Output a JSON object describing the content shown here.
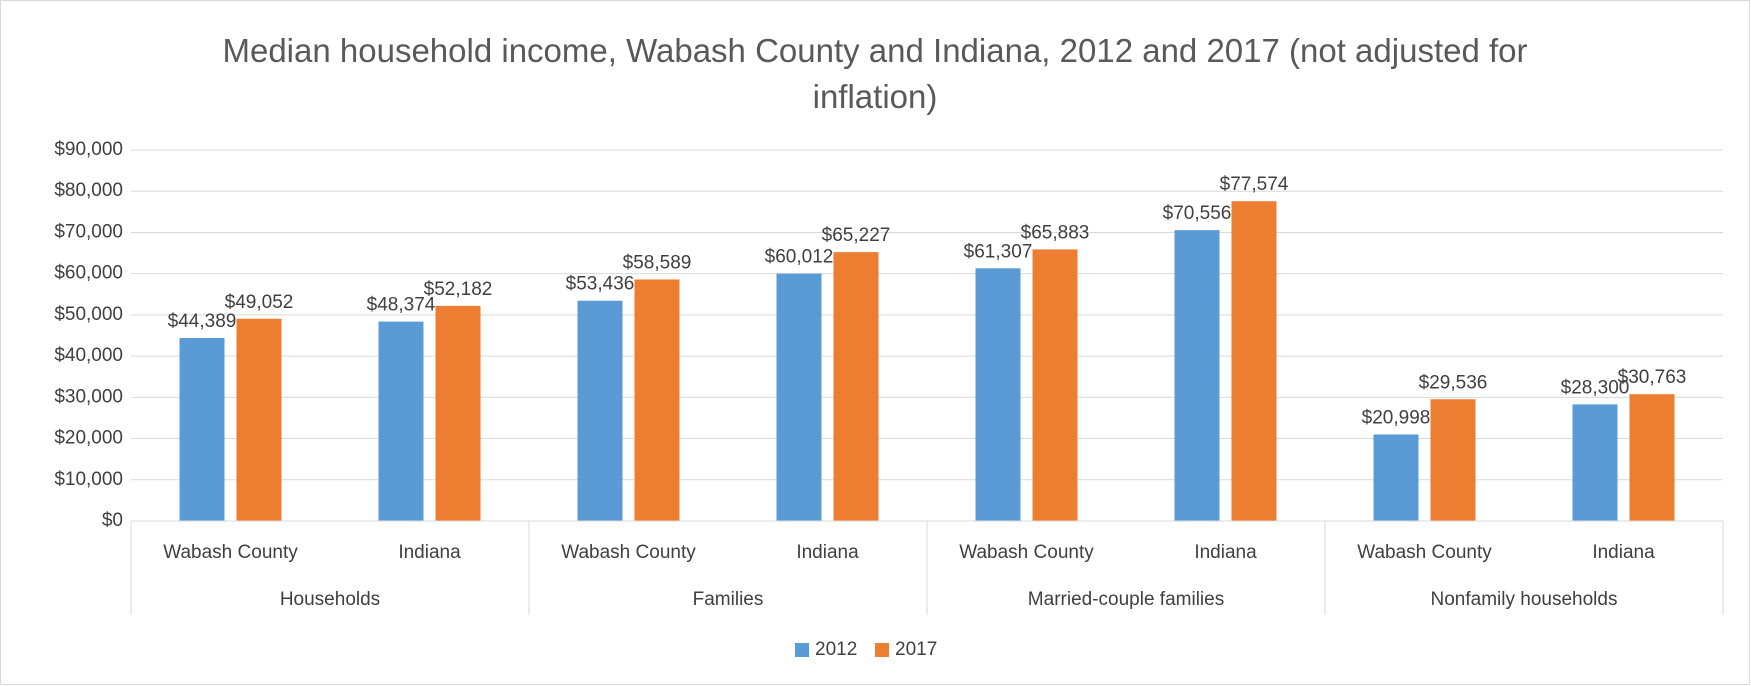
{
  "chart_data": {
    "type": "bar",
    "title": "Median household income, Wabash County and Indiana, 2012 and 2017 (not adjusted for inflation)",
    "categories": [
      "Wabash County",
      "Indiana",
      "Wabash County",
      "Indiana",
      "Wabash County",
      "Indiana",
      "Wabash County",
      "Indiana"
    ],
    "groups": [
      "Households",
      "Families",
      "Married-couple families",
      "Nonfamily households"
    ],
    "series": [
      {
        "name": "2012",
        "color": "#5b9bd5",
        "values": [
          44389,
          48374,
          53436,
          60012,
          61307,
          70556,
          20998,
          28300
        ],
        "value_labels": [
          "$44,389",
          "$48,374",
          "$53,436",
          "$60,012",
          "$61,307",
          "$70,556",
          "$20,998",
          "$28,300"
        ]
      },
      {
        "name": "2017",
        "color": "#ed7d31",
        "values": [
          49052,
          52182,
          58589,
          65227,
          65883,
          77574,
          29536,
          30763
        ],
        "value_labels": [
          "$49,052",
          "$52,182",
          "$58,589",
          "$65,227",
          "$65,883",
          "$77,574",
          "$29,536",
          "$30,763"
        ]
      }
    ],
    "ylim": [
      0,
      90000
    ],
    "yticks": [
      {
        "value": 0,
        "label": "$0"
      },
      {
        "value": 10000,
        "label": "$10,000"
      },
      {
        "value": 20000,
        "label": "$20,000"
      },
      {
        "value": 30000,
        "label": "$30,000"
      },
      {
        "value": 40000,
        "label": "$40,000"
      },
      {
        "value": 50000,
        "label": "$50,000"
      },
      {
        "value": 60000,
        "label": "$60,000"
      },
      {
        "value": 70000,
        "label": "$70,000"
      },
      {
        "value": 80000,
        "label": "$80,000"
      },
      {
        "value": 90000,
        "label": "$90,000"
      }
    ],
    "grid": true,
    "legend": "bottom"
  }
}
